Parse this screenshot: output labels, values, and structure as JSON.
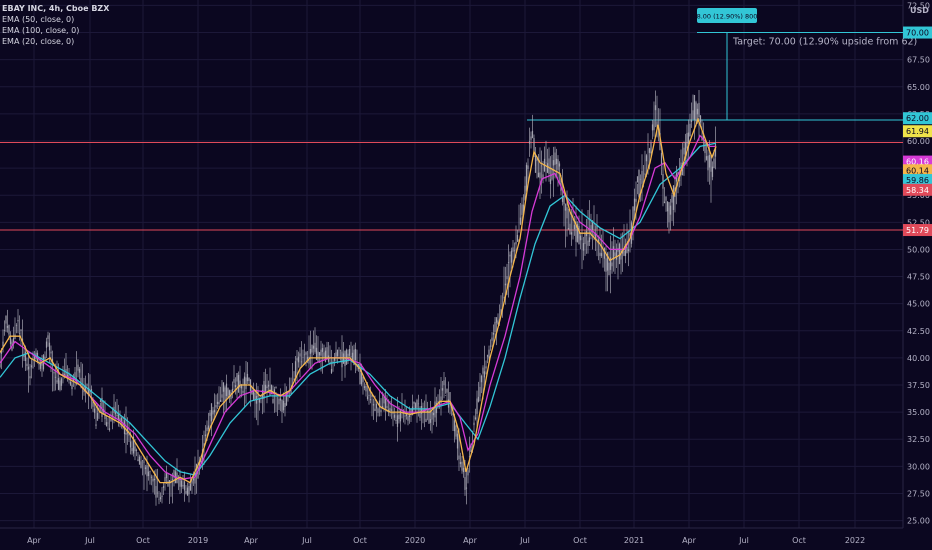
{
  "legend": {
    "symbol": "EBAY INC, 4h, Cboe BZX",
    "ema50": "EMA (50, close, 0)",
    "ema100": "EMA (100, close, 0)",
    "ema20": "EMA (20, close, 0)"
  },
  "currency": "USD",
  "measure_label": "8.00 (12.90%) 800",
  "target_label": "Target: 70.00 (12.90% upside from 62)",
  "colors": {
    "background": "#0b0720",
    "ema20": "#f5b64a",
    "ema50": "#d63ad6",
    "ema100": "#32c6d6",
    "support_line": "#e04a5a",
    "target_line": "#32c6d6",
    "candles": "#a9a9b4"
  },
  "chart_data": {
    "type": "line",
    "title": "EBAY INC, 4h, Cboe BZX",
    "x_ticks": [
      "Apr",
      "Jul",
      "Oct",
      "2019",
      "Apr",
      "Jul",
      "Oct",
      "2020",
      "Apr",
      "Jul",
      "Oct",
      "2021",
      "Apr",
      "Jul",
      "Oct",
      "2022"
    ],
    "y_ticks": [
      "72.50",
      "70.00",
      "67.50",
      "65.00",
      "62.50",
      "60.00",
      "57.50",
      "55.00",
      "52.50",
      "50.00",
      "47.50",
      "45.00",
      "42.50",
      "40.00",
      "37.50",
      "35.00",
      "32.50",
      "30.00",
      "27.50",
      "25.00"
    ],
    "ylim": [
      24.5,
      73
    ],
    "series": [
      {
        "name": "price",
        "points": [
          [
            0,
            39.5
          ],
          [
            6,
            43.5
          ],
          [
            12,
            41
          ],
          [
            18,
            43.5
          ],
          [
            24,
            40.5
          ],
          [
            30,
            38.5
          ],
          [
            36,
            40.5
          ],
          [
            42,
            39
          ],
          [
            48,
            41.5
          ],
          [
            54,
            38.5
          ],
          [
            60,
            37.5
          ],
          [
            66,
            39
          ],
          [
            72,
            37.5
          ],
          [
            78,
            39
          ],
          [
            84,
            37
          ],
          [
            90,
            37.5
          ],
          [
            96,
            34.5
          ],
          [
            102,
            35.5
          ],
          [
            108,
            34
          ],
          [
            114,
            35
          ],
          [
            120,
            34.5
          ],
          [
            126,
            33.5
          ],
          [
            132,
            32
          ],
          [
            138,
            31
          ],
          [
            144,
            30
          ],
          [
            150,
            29
          ],
          [
            156,
            28
          ],
          [
            160,
            27
          ],
          [
            166,
            29
          ],
          [
            170,
            28
          ],
          [
            176,
            29
          ],
          [
            182,
            28.5
          ],
          [
            188,
            27.5
          ],
          [
            194,
            29
          ],
          [
            200,
            30
          ],
          [
            206,
            33
          ],
          [
            212,
            35
          ],
          [
            218,
            36
          ],
          [
            224,
            37
          ],
          [
            230,
            36.5
          ],
          [
            236,
            38
          ],
          [
            242,
            37
          ],
          [
            248,
            38
          ],
          [
            254,
            36.5
          ],
          [
            260,
            36
          ],
          [
            266,
            37.5
          ],
          [
            272,
            37
          ],
          [
            278,
            36
          ],
          [
            284,
            35.5
          ],
          [
            290,
            37
          ],
          [
            296,
            39
          ],
          [
            302,
            40.5
          ],
          [
            308,
            40
          ],
          [
            314,
            41
          ],
          [
            320,
            40
          ],
          [
            326,
            40.5
          ],
          [
            332,
            39.5
          ],
          [
            338,
            40.5
          ],
          [
            344,
            40
          ],
          [
            350,
            40.5
          ],
          [
            356,
            40
          ],
          [
            360,
            38.5
          ],
          [
            366,
            37
          ],
          [
            372,
            36
          ],
          [
            378,
            35
          ],
          [
            384,
            36
          ],
          [
            390,
            35
          ],
          [
            396,
            34.5
          ],
          [
            402,
            35
          ],
          [
            408,
            34.5
          ],
          [
            414,
            35.5
          ],
          [
            420,
            35
          ],
          [
            426,
            35
          ],
          [
            432,
            34.5
          ],
          [
            438,
            36
          ],
          [
            444,
            37.5
          ],
          [
            450,
            36
          ],
          [
            456,
            33
          ],
          [
            462,
            30
          ],
          [
            466,
            28
          ],
          [
            470,
            31
          ],
          [
            476,
            35
          ],
          [
            482,
            38
          ],
          [
            488,
            40
          ],
          [
            494,
            42.5
          ],
          [
            500,
            44
          ],
          [
            506,
            47
          ],
          [
            512,
            49.5
          ],
          [
            518,
            51.5
          ],
          [
            524,
            54.5
          ],
          [
            528,
            58
          ],
          [
            532,
            61
          ],
          [
            536,
            58
          ],
          [
            540,
            57
          ],
          [
            546,
            58
          ],
          [
            552,
            57
          ],
          [
            556,
            58
          ],
          [
            560,
            57
          ],
          [
            566,
            53
          ],
          [
            572,
            52
          ],
          [
            578,
            51.5
          ],
          [
            584,
            50.5
          ],
          [
            590,
            52
          ],
          [
            596,
            51.5
          ],
          [
            602,
            49.5
          ],
          [
            608,
            48.5
          ],
          [
            614,
            50
          ],
          [
            620,
            49.5
          ],
          [
            626,
            50
          ],
          [
            632,
            52
          ],
          [
            638,
            56
          ],
          [
            644,
            57
          ],
          [
            650,
            59
          ],
          [
            656,
            63
          ],
          [
            660,
            60
          ],
          [
            664,
            55
          ],
          [
            670,
            53
          ],
          [
            676,
            56
          ],
          [
            682,
            58
          ],
          [
            688,
            60
          ],
          [
            694,
            63
          ],
          [
            700,
            62
          ],
          [
            706,
            59
          ],
          [
            712,
            57
          ],
          [
            716,
            60
          ]
        ]
      },
      {
        "name": "EMA (20, close, 0)",
        "points": [
          [
            0,
            40.5
          ],
          [
            10,
            42
          ],
          [
            20,
            42
          ],
          [
            30,
            40
          ],
          [
            40,
            39.5
          ],
          [
            50,
            40
          ],
          [
            60,
            38.5
          ],
          [
            70,
            38
          ],
          [
            80,
            37.5
          ],
          [
            90,
            36.5
          ],
          [
            100,
            35
          ],
          [
            110,
            34.5
          ],
          [
            120,
            34
          ],
          [
            130,
            33
          ],
          [
            140,
            31.5
          ],
          [
            150,
            30
          ],
          [
            160,
            28.5
          ],
          [
            170,
            28.5
          ],
          [
            180,
            29
          ],
          [
            190,
            28.5
          ],
          [
            200,
            30.5
          ],
          [
            210,
            33.5
          ],
          [
            220,
            35.5
          ],
          [
            230,
            36.5
          ],
          [
            240,
            37.5
          ],
          [
            250,
            37.5
          ],
          [
            260,
            36.5
          ],
          [
            270,
            37
          ],
          [
            280,
            36.5
          ],
          [
            290,
            37
          ],
          [
            300,
            39
          ],
          [
            310,
            40
          ],
          [
            320,
            40
          ],
          [
            330,
            40
          ],
          [
            340,
            40
          ],
          [
            350,
            40
          ],
          [
            360,
            39
          ],
          [
            370,
            37
          ],
          [
            380,
            35.5
          ],
          [
            390,
            35
          ],
          [
            400,
            35
          ],
          [
            410,
            34.8
          ],
          [
            420,
            35
          ],
          [
            430,
            35
          ],
          [
            440,
            36
          ],
          [
            450,
            36
          ],
          [
            458,
            33.5
          ],
          [
            466,
            29.5
          ],
          [
            474,
            32
          ],
          [
            482,
            36
          ],
          [
            490,
            40
          ],
          [
            500,
            43.5
          ],
          [
            510,
            47.5
          ],
          [
            520,
            51
          ],
          [
            528,
            56
          ],
          [
            534,
            59
          ],
          [
            540,
            58
          ],
          [
            550,
            57.5
          ],
          [
            560,
            57
          ],
          [
            570,
            53.5
          ],
          [
            580,
            51.5
          ],
          [
            590,
            51.5
          ],
          [
            600,
            50.5
          ],
          [
            610,
            49
          ],
          [
            620,
            49.5
          ],
          [
            630,
            51
          ],
          [
            640,
            55
          ],
          [
            650,
            58
          ],
          [
            658,
            61.5
          ],
          [
            666,
            57
          ],
          [
            674,
            55
          ],
          [
            682,
            57.5
          ],
          [
            690,
            60
          ],
          [
            698,
            62
          ],
          [
            706,
            60
          ],
          [
            712,
            58.5
          ],
          [
            716,
            59.5
          ]
        ]
      },
      {
        "name": "EMA (50, close, 0)",
        "points": [
          [
            0,
            39.5
          ],
          [
            15,
            41.5
          ],
          [
            30,
            40.5
          ],
          [
            45,
            39.5
          ],
          [
            60,
            38.5
          ],
          [
            75,
            38
          ],
          [
            90,
            36.5
          ],
          [
            105,
            35
          ],
          [
            120,
            34.2
          ],
          [
            135,
            33
          ],
          [
            150,
            31
          ],
          [
            165,
            29.5
          ],
          [
            180,
            28.8
          ],
          [
            195,
            29
          ],
          [
            210,
            32
          ],
          [
            225,
            35
          ],
          [
            240,
            36.5
          ],
          [
            255,
            37
          ],
          [
            270,
            36.8
          ],
          [
            285,
            36.5
          ],
          [
            300,
            38
          ],
          [
            315,
            39.5
          ],
          [
            330,
            40
          ],
          [
            345,
            40
          ],
          [
            360,
            39.5
          ],
          [
            375,
            37.5
          ],
          [
            390,
            35.8
          ],
          [
            405,
            35
          ],
          [
            420,
            35
          ],
          [
            435,
            35.5
          ],
          [
            450,
            36
          ],
          [
            460,
            34.5
          ],
          [
            468,
            31.5
          ],
          [
            478,
            33
          ],
          [
            490,
            37.5
          ],
          [
            505,
            42
          ],
          [
            520,
            47.5
          ],
          [
            532,
            53.5
          ],
          [
            542,
            56.5
          ],
          [
            555,
            57
          ],
          [
            565,
            55
          ],
          [
            580,
            52.5
          ],
          [
            595,
            51.5
          ],
          [
            610,
            50
          ],
          [
            625,
            50
          ],
          [
            640,
            53
          ],
          [
            655,
            57.5
          ],
          [
            665,
            58
          ],
          [
            675,
            56.5
          ],
          [
            690,
            58.5
          ],
          [
            700,
            60.5
          ],
          [
            710,
            59.5
          ],
          [
            716,
            59.5
          ]
        ]
      },
      {
        "name": "EMA (100, close, 0)",
        "points": [
          [
            0,
            38.2
          ],
          [
            15,
            40
          ],
          [
            30,
            40.5
          ],
          [
            50,
            39.5
          ],
          [
            70,
            38.5
          ],
          [
            90,
            37
          ],
          [
            110,
            35.5
          ],
          [
            130,
            34
          ],
          [
            150,
            32
          ],
          [
            165,
            30.5
          ],
          [
            180,
            29.5
          ],
          [
            195,
            29.2
          ],
          [
            210,
            31
          ],
          [
            230,
            34
          ],
          [
            250,
            36
          ],
          [
            270,
            36.5
          ],
          [
            290,
            36.5
          ],
          [
            310,
            38.5
          ],
          [
            330,
            39.5
          ],
          [
            350,
            39.8
          ],
          [
            370,
            38.5
          ],
          [
            390,
            36.5
          ],
          [
            410,
            35.3
          ],
          [
            430,
            35.3
          ],
          [
            450,
            35.8
          ],
          [
            465,
            34
          ],
          [
            478,
            32.5
          ],
          [
            490,
            35.5
          ],
          [
            505,
            40
          ],
          [
            520,
            45.5
          ],
          [
            535,
            50.5
          ],
          [
            550,
            54
          ],
          [
            565,
            55
          ],
          [
            580,
            53.5
          ],
          [
            600,
            52
          ],
          [
            620,
            51
          ],
          [
            640,
            52.5
          ],
          [
            660,
            56
          ],
          [
            680,
            57.5
          ],
          [
            700,
            59.5
          ],
          [
            716,
            59.8
          ]
        ]
      }
    ],
    "horizontal_lines": [
      {
        "name": "target",
        "value": 61.94
      },
      {
        "name": "resistance",
        "value": 59.86
      },
      {
        "name": "support",
        "value": 51.79
      }
    ],
    "measure": {
      "from": 62,
      "to": 70
    }
  },
  "price_tags": [
    {
      "label": "70.00",
      "value": 70.0,
      "bg": "#32c6d6",
      "fg": "#0b0720"
    },
    {
      "label": "62.00",
      "value": 62.1,
      "bg": "#32c6d6",
      "fg": "#0b0720"
    },
    {
      "label": "61.94",
      "value": 60.9,
      "bg": "#f0e34a",
      "fg": "#0b0720"
    },
    {
      "label": "60.16",
      "value": 58.1,
      "bg": "#d63ad6",
      "fg": "#ffffff"
    },
    {
      "label": "60.14",
      "value": 57.3,
      "bg": "#f5b64a",
      "fg": "#0b0720"
    },
    {
      "label": "59.86",
      "value": 56.4,
      "bg": "#32c6d6",
      "fg": "#0b0720"
    },
    {
      "label": "58.34",
      "value": 55.5,
      "bg": "#e04a5a",
      "fg": "#ffffff"
    },
    {
      "label": "51.79",
      "value": 51.79,
      "bg": "#e04a5a",
      "fg": "#ffffff"
    }
  ]
}
